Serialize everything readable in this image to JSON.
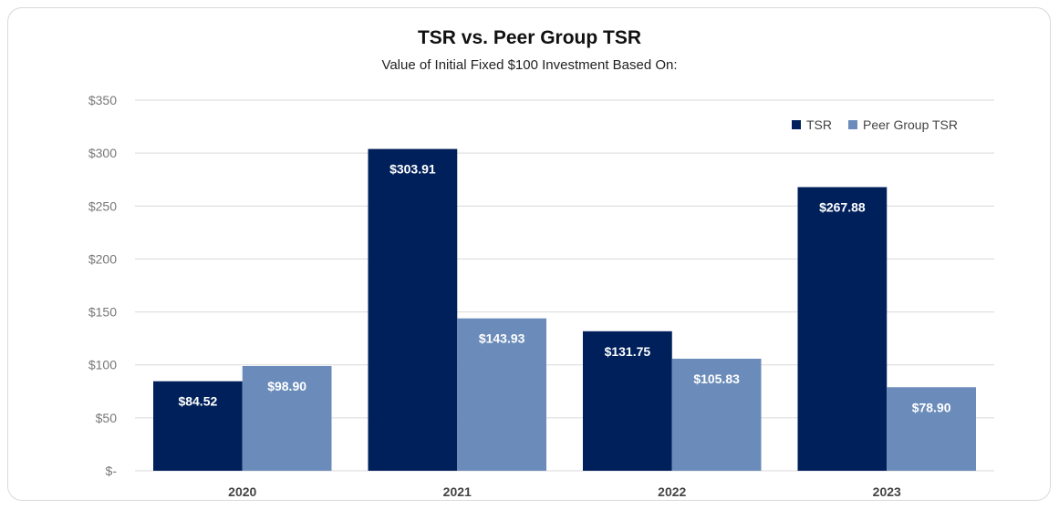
{
  "chart_data": {
    "type": "bar",
    "title": "TSR vs. Peer Group TSR",
    "subtitle": "Value of Initial Fixed $100 Investment Based On:",
    "categories": [
      "2020",
      "2021",
      "2022",
      "2023"
    ],
    "series": [
      {
        "name": "TSR",
        "values": [
          84.52,
          303.91,
          131.75,
          267.88
        ],
        "labels": [
          "$84.52",
          "$303.91",
          "$131.75",
          "$267.88"
        ],
        "color": "#00205b"
      },
      {
        "name": "Peer Group TSR",
        "values": [
          98.9,
          143.93,
          105.83,
          78.9
        ],
        "labels": [
          "$98.90",
          "$143.93",
          "$105.83",
          "$78.90"
        ],
        "color": "#6b8cba"
      }
    ],
    "ylim": [
      0,
      350
    ],
    "yticks": [
      0,
      50,
      100,
      150,
      200,
      250,
      300,
      350
    ],
    "ytick_labels": [
      "$-",
      "$50",
      "$100",
      "$150",
      "$200",
      "$250",
      "$300",
      "$350"
    ],
    "grid": true,
    "legend": "top-right"
  }
}
